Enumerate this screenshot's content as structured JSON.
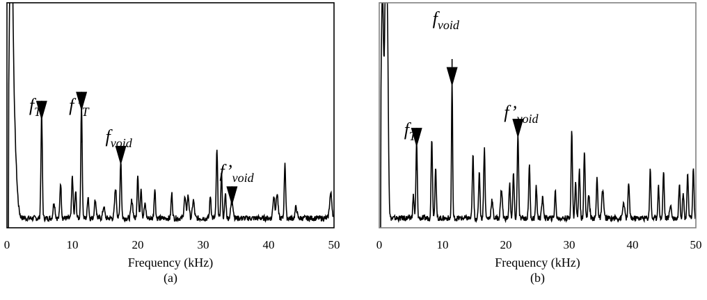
{
  "chart_data": [
    {
      "type": "line",
      "panel_label": "(a)",
      "xlabel": "Frequency (kHz)",
      "ylabel": "",
      "xlim": [
        0,
        50
      ],
      "ylim": [
        0,
        1
      ],
      "x_ticks": [
        0,
        10,
        20,
        30,
        40,
        50
      ],
      "frame_color": "#000000",
      "grid": false,
      "baseline": 0.03,
      "peaks": [
        {
          "x": 0.6,
          "y": 0.99,
          "w": 0.35
        },
        {
          "x": 0.9,
          "y": 0.5,
          "w": 0.6
        },
        {
          "x": 5.3,
          "y": 0.46,
          "w": 0.15
        },
        {
          "x": 7.2,
          "y": 0.07,
          "w": 0.2
        },
        {
          "x": 8.2,
          "y": 0.16,
          "w": 0.15
        },
        {
          "x": 10.0,
          "y": 0.19,
          "w": 0.15
        },
        {
          "x": 10.5,
          "y": 0.12,
          "w": 0.15
        },
        {
          "x": 11.4,
          "y": 0.5,
          "w": 0.15
        },
        {
          "x": 12.4,
          "y": 0.1,
          "w": 0.15
        },
        {
          "x": 13.5,
          "y": 0.08,
          "w": 0.2
        },
        {
          "x": 14.8,
          "y": 0.05,
          "w": 0.2
        },
        {
          "x": 16.6,
          "y": 0.13,
          "w": 0.2
        },
        {
          "x": 17.4,
          "y": 0.26,
          "w": 0.15
        },
        {
          "x": 19.1,
          "y": 0.08,
          "w": 0.2
        },
        {
          "x": 20.0,
          "y": 0.2,
          "w": 0.15
        },
        {
          "x": 20.5,
          "y": 0.14,
          "w": 0.15
        },
        {
          "x": 21.1,
          "y": 0.06,
          "w": 0.2
        },
        {
          "x": 22.6,
          "y": 0.13,
          "w": 0.15
        },
        {
          "x": 25.2,
          "y": 0.11,
          "w": 0.15
        },
        {
          "x": 27.2,
          "y": 0.09,
          "w": 0.2
        },
        {
          "x": 27.7,
          "y": 0.1,
          "w": 0.2
        },
        {
          "x": 28.5,
          "y": 0.08,
          "w": 0.2
        },
        {
          "x": 31.1,
          "y": 0.1,
          "w": 0.15
        },
        {
          "x": 32.1,
          "y": 0.3,
          "w": 0.15
        },
        {
          "x": 32.8,
          "y": 0.2,
          "w": 0.15
        },
        {
          "x": 33.4,
          "y": 0.11,
          "w": 0.15
        },
        {
          "x": 34.4,
          "y": 0.08,
          "w": 0.25
        },
        {
          "x": 40.8,
          "y": 0.1,
          "w": 0.2
        },
        {
          "x": 41.3,
          "y": 0.11,
          "w": 0.2
        },
        {
          "x": 42.5,
          "y": 0.25,
          "w": 0.15
        },
        {
          "x": 44.2,
          "y": 0.05,
          "w": 0.2
        },
        {
          "x": 49.5,
          "y": 0.11,
          "w": 0.25
        }
      ],
      "annotations": [
        {
          "main": "f",
          "sub": "T",
          "prime": false,
          "x": 5.3
        },
        {
          "main": "f",
          "sub": "T",
          "prime": true,
          "x": 11.4
        },
        {
          "main": "f",
          "sub": "void",
          "prime": false,
          "x": 17.4
        },
        {
          "main": "f",
          "sub": "void",
          "prime": true,
          "x": 34.4
        }
      ]
    },
    {
      "type": "line",
      "panel_label": "(b)",
      "xlabel": "Frequency (kHz)",
      "ylabel": "",
      "xlim": [
        0,
        50
      ],
      "ylim": [
        0,
        1
      ],
      "x_ticks": [
        0,
        10,
        20,
        30,
        40,
        50
      ],
      "frame_color": "#7f7f7f",
      "grid": false,
      "baseline": 0.03,
      "peaks": [
        {
          "x": 0.5,
          "y": 1.0,
          "w": 0.3
        },
        {
          "x": 1.0,
          "y": 1.0,
          "w": 0.2
        },
        {
          "x": 1.3,
          "y": 0.82,
          "w": 0.2
        },
        {
          "x": 5.4,
          "y": 0.1,
          "w": 0.15
        },
        {
          "x": 5.9,
          "y": 0.34,
          "w": 0.15
        },
        {
          "x": 8.3,
          "y": 0.36,
          "w": 0.15
        },
        {
          "x": 8.9,
          "y": 0.23,
          "w": 0.15
        },
        {
          "x": 11.5,
          "y": 0.61,
          "w": 0.12
        },
        {
          "x": 14.8,
          "y": 0.28,
          "w": 0.15
        },
        {
          "x": 15.8,
          "y": 0.21,
          "w": 0.15
        },
        {
          "x": 16.6,
          "y": 0.31,
          "w": 0.15
        },
        {
          "x": 17.8,
          "y": 0.08,
          "w": 0.2
        },
        {
          "x": 19.3,
          "y": 0.13,
          "w": 0.2
        },
        {
          "x": 20.6,
          "y": 0.15,
          "w": 0.15
        },
        {
          "x": 21.2,
          "y": 0.2,
          "w": 0.15
        },
        {
          "x": 21.9,
          "y": 0.38,
          "w": 0.15
        },
        {
          "x": 23.7,
          "y": 0.24,
          "w": 0.15
        },
        {
          "x": 24.8,
          "y": 0.14,
          "w": 0.15
        },
        {
          "x": 25.8,
          "y": 0.09,
          "w": 0.2
        },
        {
          "x": 27.8,
          "y": 0.12,
          "w": 0.15
        },
        {
          "x": 30.4,
          "y": 0.39,
          "w": 0.15
        },
        {
          "x": 31.0,
          "y": 0.16,
          "w": 0.15
        },
        {
          "x": 31.6,
          "y": 0.22,
          "w": 0.15
        },
        {
          "x": 32.4,
          "y": 0.3,
          "w": 0.15
        },
        {
          "x": 33.1,
          "y": 0.1,
          "w": 0.2
        },
        {
          "x": 34.4,
          "y": 0.18,
          "w": 0.15
        },
        {
          "x": 35.3,
          "y": 0.13,
          "w": 0.2
        },
        {
          "x": 38.6,
          "y": 0.07,
          "w": 0.2
        },
        {
          "x": 39.4,
          "y": 0.16,
          "w": 0.15
        },
        {
          "x": 42.8,
          "y": 0.22,
          "w": 0.15
        },
        {
          "x": 44.1,
          "y": 0.14,
          "w": 0.15
        },
        {
          "x": 44.9,
          "y": 0.21,
          "w": 0.15
        },
        {
          "x": 46.0,
          "y": 0.06,
          "w": 0.2
        },
        {
          "x": 47.4,
          "y": 0.15,
          "w": 0.15
        },
        {
          "x": 48.0,
          "y": 0.12,
          "w": 0.15
        },
        {
          "x": 48.7,
          "y": 0.2,
          "w": 0.15
        },
        {
          "x": 49.6,
          "y": 0.22,
          "w": 0.15
        }
      ],
      "annotations": [
        {
          "main": "f",
          "sub": "T",
          "prime": false,
          "x": 5.9
        },
        {
          "main": "f",
          "sub": "void",
          "prime": false,
          "x": 11.5
        },
        {
          "main": "f",
          "sub": "void",
          "prime": true,
          "x": 21.9
        }
      ]
    }
  ]
}
